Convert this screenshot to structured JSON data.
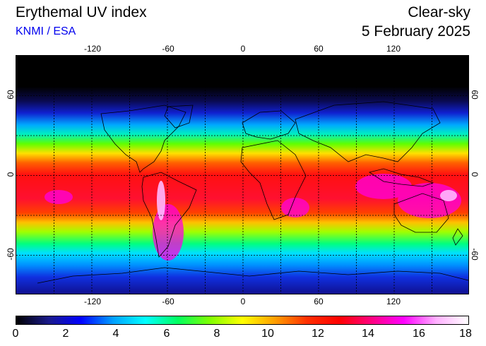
{
  "header": {
    "title": "Erythemal UV index",
    "credit": "KNMI / ESA",
    "mode": "Clear-sky",
    "date": "5 February 2025"
  },
  "map": {
    "lon_ticks": [
      "-120",
      "-60",
      "0",
      "60",
      "120"
    ],
    "lat_ticks": [
      "60",
      "0",
      "-60"
    ]
  },
  "colorbar": {
    "labels": [
      "0",
      "2",
      "4",
      "6",
      "8",
      "10",
      "12",
      "14",
      "16",
      "18"
    ],
    "colors": [
      "#000000",
      "#1a1a8a",
      "#0000ff",
      "#00a0ff",
      "#00ffff",
      "#00ff60",
      "#80ff00",
      "#ffff00",
      "#ffa000",
      "#ff3000",
      "#ff0000",
      "#ff0080",
      "#ff00ff",
      "#ffb0ff",
      "#ffffff"
    ]
  }
}
